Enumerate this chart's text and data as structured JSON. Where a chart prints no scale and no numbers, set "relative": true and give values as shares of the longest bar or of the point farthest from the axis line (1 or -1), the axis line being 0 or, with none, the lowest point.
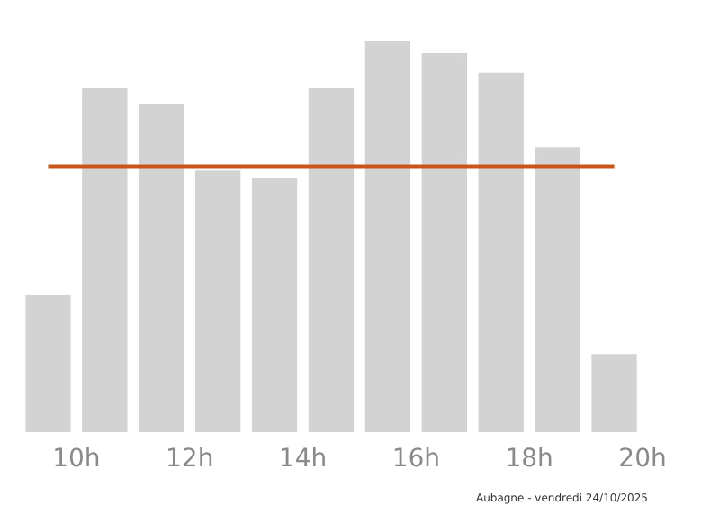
{
  "chart_data": {
    "type": "bar",
    "relative": true,
    "x": [
      9.5,
      10.5,
      11.5,
      12.5,
      13.5,
      14.5,
      15.5,
      16.5,
      17.5,
      18.5,
      19.5
    ],
    "values": [
      0.35,
      0.88,
      0.84,
      0.67,
      0.65,
      0.88,
      1,
      0.97,
      0.92,
      0.73,
      0.2
    ],
    "color": "#d3d3d3",
    "xlim": [
      9,
      20
    ],
    "xticks": [
      {
        "value": 10,
        "label": "10h"
      },
      {
        "value": 12,
        "label": "12h"
      },
      {
        "value": 14,
        "label": "14h"
      },
      {
        "value": 16,
        "label": "16h"
      },
      {
        "value": 18,
        "label": "18h"
      },
      {
        "value": 20,
        "label": "20h"
      }
    ],
    "ref_lines": [
      {
        "axis": "y",
        "value": 0.68,
        "color": "#c8561b"
      }
    ],
    "grid": false,
    "annotations": [
      "Aubagne - vendredi 24/10/2025"
    ]
  }
}
